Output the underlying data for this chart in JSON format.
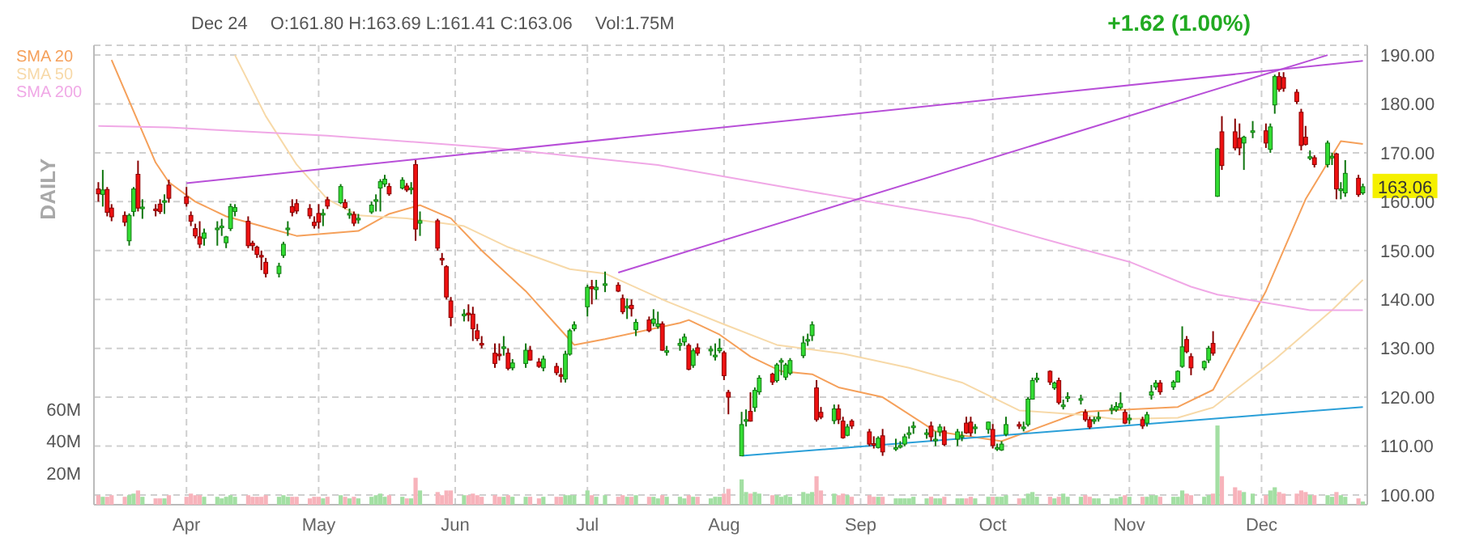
{
  "chart_data": {
    "type": "candlestick",
    "annotations": [
      "Dec 24",
      "O:161.80 H:163.69 L:161.41 C:163.06",
      "Vol:1.75M",
      "+1.62 (1.00%)",
      "DAILY",
      {
        "text": "163.06",
        "x": "--12-24",
        "y": 163.06
      }
    ],
    "x": [
      "--03-12",
      "--03-13",
      "--03-14",
      "--03-15",
      "--03-18",
      "--03-19",
      "--03-20",
      "--03-21",
      "--03-22",
      "--03-25",
      "--03-26",
      "--03-27",
      "--03-28",
      "--04-01",
      "--04-02",
      "--04-03",
      "--04-04",
      "--04-05",
      "--04-08",
      "--04-09",
      "--04-10",
      "--04-11",
      "--04-12",
      "--04-15",
      "--04-16",
      "--04-17",
      "--04-18",
      "--04-19",
      "--04-22",
      "--04-23",
      "--04-24",
      "--04-25",
      "--04-26",
      "--04-29",
      "--04-30",
      "--05-01",
      "--05-02",
      "--05-03",
      "--05-06",
      "--05-07",
      "--05-08",
      "--05-09",
      "--05-10",
      "--05-13",
      "--05-14",
      "--05-15",
      "--05-16",
      "--05-17",
      "--05-20",
      "--05-21",
      "--05-22",
      "--05-23",
      "--05-24",
      "--05-28",
      "--05-29",
      "--05-30",
      "--05-31",
      "--06-03",
      "--06-04",
      "--06-05",
      "--06-06",
      "--06-07",
      "--06-10",
      "--06-11",
      "--06-12",
      "--06-13",
      "--06-14",
      "--06-17",
      "--06-18",
      "--06-20",
      "--06-21",
      "--06-24",
      "--06-25",
      "--06-26",
      "--06-27",
      "--06-28",
      "--07-01",
      "--07-02",
      "--07-03",
      "--07-05",
      "--07-08",
      "--07-09",
      "--07-10",
      "--07-11",
      "--07-12",
      "--07-15",
      "--07-16",
      "--07-17",
      "--07-18",
      "--07-19",
      "--07-22",
      "--07-23",
      "--07-24",
      "--07-25",
      "--07-26",
      "--07-29",
      "--07-30",
      "--07-31",
      "--08-01",
      "--08-02",
      "--08-05",
      "--08-06",
      "--08-07",
      "--08-08",
      "--08-09",
      "--08-12",
      "--08-13",
      "--08-14",
      "--08-15",
      "--08-16",
      "--08-19",
      "--08-20",
      "--08-21",
      "--08-22",
      "--08-23",
      "--08-26",
      "--08-27",
      "--08-28",
      "--08-29",
      "--08-30",
      "--09-03",
      "--09-04",
      "--09-05",
      "--09-06",
      "--09-09",
      "--09-10",
      "--09-11",
      "--09-12",
      "--09-13",
      "--09-16",
      "--09-17",
      "--09-18",
      "--09-19",
      "--09-20",
      "--09-23",
      "--09-24",
      "--09-25",
      "--09-26",
      "--09-27",
      "--09-30",
      "--10-01",
      "--10-02",
      "--10-03",
      "--10-04",
      "--10-07",
      "--10-08",
      "--10-09",
      "--10-10",
      "--10-11",
      "--10-14",
      "--10-15",
      "--10-16",
      "--10-17",
      "--10-18",
      "--10-21",
      "--10-22",
      "--10-23",
      "--10-24",
      "--10-25",
      "--10-28",
      "--10-29",
      "--10-30",
      "--10-31",
      "--11-01",
      "--11-04",
      "--11-05",
      "--11-06",
      "--11-07",
      "--11-08",
      "--11-11",
      "--11-12",
      "--11-13",
      "--11-14",
      "--11-15",
      "--11-18",
      "--11-19",
      "--11-20",
      "--11-21",
      "--11-22",
      "--11-25",
      "--11-26",
      "--11-27",
      "--11-29",
      "--12-02",
      "--12-03",
      "--12-04",
      "--12-05",
      "--12-06",
      "--12-09",
      "--12-10",
      "--12-11",
      "--12-12",
      "--12-13",
      "--12-16",
      "--12-17",
      "--12-18",
      "--12-19",
      "--12-20",
      "--12-23",
      "--12-24"
    ],
    "ohlc": [
      [
        162.6,
        164,
        160,
        161.6
      ],
      [
        161.5,
        166.5,
        159,
        162.4
      ],
      [
        162.5,
        163,
        157,
        157.8
      ],
      [
        158.7,
        159.5,
        156,
        156.9
      ],
      [
        157.2,
        158,
        155,
        155.8
      ],
      [
        152,
        157.6,
        151,
        157.2
      ],
      [
        158,
        163,
        157,
        162.6
      ],
      [
        165.6,
        168.4,
        158,
        158.7
      ],
      [
        158.6,
        160.5,
        156.5,
        158.9
      ],
      [
        158.5,
        159.5,
        157,
        158.4
      ],
      [
        159.5,
        160.5,
        157.5,
        158
      ],
      [
        160,
        161.5,
        157.5,
        160.2
      ],
      [
        163.4,
        164.5,
        159.8,
        160.7
      ],
      [
        161,
        163,
        159,
        159.6
      ],
      [
        157.2,
        158,
        155,
        156
      ],
      [
        154.5,
        155.5,
        152.5,
        153
      ],
      [
        152.8,
        156,
        150.5,
        151.3
      ],
      [
        152.5,
        154.5,
        151,
        153.6
      ],
      [
        154.3,
        156,
        151,
        154.6
      ],
      [
        155,
        156.5,
        153,
        155
      ],
      [
        151.6,
        153,
        150.5,
        152.8
      ],
      [
        154.5,
        159.6,
        154,
        159
      ],
      [
        158,
        159.5,
        157,
        158.8
      ],
      [
        156,
        157,
        150.5,
        151
      ],
      [
        151.5,
        152,
        150,
        151
      ],
      [
        150.7,
        151,
        148.5,
        149.2
      ],
      [
        149,
        150,
        146,
        148.8
      ],
      [
        147.6,
        148.5,
        144.5,
        145.3
      ],
      [
        145.3,
        147.5,
        144.5,
        146.8
      ],
      [
        149,
        151.8,
        148.5,
        151.3
      ],
      [
        154.3,
        156,
        153,
        154.6
      ],
      [
        159,
        160.5,
        157,
        157.8
      ],
      [
        159.6,
        160.5,
        157.5,
        158.1
      ],
      [
        158.6,
        159.5,
        156.5,
        157.1
      ],
      [
        155.8,
        157,
        154.5,
        155.1
      ],
      [
        157.6,
        159.5,
        154.5,
        155.8
      ],
      [
        157.5,
        158.5,
        155,
        157.6
      ],
      [
        160.4,
        161,
        158.5,
        159.1
      ],
      [
        159.8,
        163.6,
        159.5,
        163.1
      ],
      [
        159.8,
        160.5,
        158.5,
        158.8
      ],
      [
        157.5,
        158.6,
        156.5,
        157.6
      ],
      [
        157.4,
        158,
        155,
        155.6
      ],
      [
        156.5,
        157.5,
        155.5,
        156.6
      ],
      [
        157.9,
        160,
        157.5,
        159.3
      ],
      [
        160.4,
        161.5,
        158,
        160.4
      ],
      [
        162.8,
        164.6,
        158,
        164.1
      ],
      [
        163.6,
        165.5,
        163,
        164.6
      ],
      [
        163.1,
        163.8,
        161.2,
        161.6
      ],
      [
        162.8,
        165,
        162.5,
        164.4
      ],
      [
        163.2,
        163.8,
        162,
        162.4
      ],
      [
        162.6,
        164,
        161.5,
        162.8
      ],
      [
        167.6,
        168.5,
        152,
        154.4
      ],
      [
        155.6,
        158,
        153,
        156.1
      ],
      [
        156.1,
        156.5,
        150,
        150.5
      ],
      [
        148.4,
        149.5,
        147,
        148.2
      ],
      [
        146.7,
        147,
        140,
        140.5
      ],
      [
        139.7,
        140.5,
        134.5,
        136.3
      ],
      [
        136.8,
        138,
        135.5,
        137
      ],
      [
        137.2,
        139,
        135.5,
        137
      ],
      [
        137,
        138.5,
        131.5,
        134
      ],
      [
        133.6,
        135,
        131.5,
        132
      ],
      [
        131,
        132.5,
        130,
        130.8
      ],
      [
        129,
        131,
        126,
        126.9
      ],
      [
        128.8,
        131,
        127.5,
        128.5
      ],
      [
        130.2,
        132.5,
        128.5,
        130.3
      ],
      [
        129,
        130,
        125.5,
        125.9
      ],
      [
        126,
        127.8,
        125.5,
        127
      ],
      [
        126.9,
        131,
        126,
        129.6
      ],
      [
        129.6,
        130.5,
        127.5,
        127.6
      ],
      [
        127.2,
        128,
        126,
        126.3
      ],
      [
        126,
        128.5,
        125.3,
        127.8
      ],
      [
        126.3,
        127,
        124.5,
        125
      ],
      [
        124.6,
        126,
        123,
        124.4
      ],
      [
        123.7,
        129.5,
        123,
        128.8
      ],
      [
        128.8,
        134,
        128.5,
        133.6
      ],
      [
        134,
        135.5,
        133.5,
        134.8
      ],
      [
        138.5,
        143,
        136.5,
        142.5
      ],
      [
        142.6,
        144,
        139,
        142.2
      ],
      [
        142,
        144,
        140,
        142.5
      ],
      [
        143.2,
        145.7,
        141.5,
        143.2
      ],
      [
        142.9,
        143.5,
        141.5,
        141.7
      ],
      [
        140.2,
        141,
        137,
        137.5
      ],
      [
        138.5,
        140.2,
        136,
        138.6
      ],
      [
        138.8,
        140,
        136.5,
        138.1
      ],
      [
        133.8,
        136,
        132.5,
        135.3
      ],
      [
        135.8,
        136.5,
        133.3,
        133.6
      ],
      [
        135.1,
        138,
        134.5,
        136
      ],
      [
        134.5,
        137.5,
        134,
        135
      ],
      [
        135,
        135.5,
        129.5,
        129.6
      ],
      [
        129.5,
        130.5,
        128.5,
        129.5
      ],
      [
        130.6,
        132,
        129.5,
        131
      ],
      [
        131.3,
        133,
        130.5,
        132.3
      ],
      [
        130.6,
        131,
        125.5,
        125.7
      ],
      [
        126.5,
        130,
        126,
        129.5
      ],
      [
        130.1,
        131,
        128.5,
        129
      ],
      [
        129.8,
        130.5,
        128.5,
        129.8
      ],
      [
        128.6,
        131,
        127.5,
        128.6
      ],
      [
        129.5,
        132,
        129,
        130
      ],
      [
        129.1,
        129.5,
        123.5,
        124.4
      ],
      [
        121,
        121.5,
        116.5,
        120
      ],
      [
        108,
        117,
        108,
        114.4
      ],
      [
        115.4,
        117.5,
        114,
        115.4
      ],
      [
        117.1,
        121,
        115,
        115.1
      ],
      [
        117.9,
        122,
        117,
        121.4
      ],
      [
        121.1,
        124.5,
        120.5,
        123.9
      ],
      [
        124.7,
        125,
        122.5,
        123.1
      ],
      [
        123.4,
        127,
        123,
        126.6
      ],
      [
        127.5,
        128,
        124.5,
        127.5
      ],
      [
        124.1,
        127,
        123.5,
        126.6
      ],
      [
        124.9,
        128,
        124.5,
        127.5
      ],
      [
        128.5,
        132.5,
        128,
        131.1
      ],
      [
        131.8,
        133,
        130.5,
        131.8
      ],
      [
        132.6,
        135.5,
        131.5,
        134.8
      ],
      [
        121.9,
        123.5,
        115,
        115.4
      ],
      [
        116.9,
        118,
        115.5,
        115.9
      ],
      [
        115.2,
        118.5,
        114.5,
        117.6
      ],
      [
        117.6,
        118.5,
        114.5,
        115.4
      ],
      [
        115.1,
        116,
        111.5,
        111.7
      ],
      [
        112.2,
        114.5,
        112,
        113.9
      ],
      [
        115.1,
        115.5,
        113.5,
        114.1
      ],
      [
        112.9,
        113.5,
        110,
        110.4
      ],
      [
        110.5,
        112,
        109.5,
        110.4
      ],
      [
        109.7,
        112,
        109.5,
        111.6
      ],
      [
        112.1,
        113.5,
        108,
        108.8
      ],
      [
        109.7,
        111.5,
        109,
        109.7
      ],
      [
        110.1,
        111,
        109.5,
        110.1
      ],
      [
        110.4,
        112.5,
        110,
        111.9
      ],
      [
        112.7,
        114,
        111.5,
        112.7
      ],
      [
        114.1,
        115,
        112.5,
        114.1
      ],
      [
        112.7,
        113.5,
        111.5,
        112.7
      ],
      [
        114.1,
        115,
        111,
        111.9
      ],
      [
        111.4,
        113,
        110,
        111.4
      ],
      [
        112.9,
        114.5,
        112,
        113.9
      ],
      [
        113.1,
        114,
        110,
        110.3
      ],
      [
        111.4,
        113.5,
        110,
        112.9
      ],
      [
        112.1,
        113,
        111,
        112.1
      ],
      [
        114.7,
        116,
        112.5,
        112.7
      ],
      [
        114.9,
        116,
        112,
        112.7
      ],
      [
        113.9,
        114.5,
        112.5,
        113.9
      ],
      [
        113.4,
        115,
        112.5,
        114.9
      ],
      [
        113.4,
        114.5,
        109.5,
        110.1
      ],
      [
        109.7,
        110.5,
        109,
        109.7
      ],
      [
        109.2,
        111,
        109,
        110.4
      ],
      [
        112.4,
        116,
        112,
        114.4
      ],
      [
        114.4,
        115,
        113.5,
        114.1
      ],
      [
        113.9,
        115,
        113,
        113.9
      ],
      [
        114.4,
        120,
        114,
        119.6
      ],
      [
        119.6,
        124,
        119.5,
        123.4
      ],
      [
        123.9,
        125,
        123,
        123.9
      ],
      [
        125.3,
        125.5,
        122.5,
        123.1
      ],
      [
        121.9,
        123.2,
        121.5,
        122.9
      ],
      [
        123.4,
        124,
        118.5,
        118.9
      ],
      [
        118.4,
        119.5,
        117.5,
        118.4
      ],
      [
        120.1,
        121,
        119,
        120.1
      ],
      [
        119.7,
        120.5,
        118.5,
        119.7
      ],
      [
        116.9,
        117.5,
        115,
        115.4
      ],
      [
        115.4,
        116,
        113.5,
        113.9
      ],
      [
        115.4,
        116,
        114.5,
        115.4
      ],
      [
        115.9,
        117,
        115,
        115.9
      ],
      [
        117.7,
        118.5,
        116.5,
        117.7
      ],
      [
        117.4,
        119,
        117,
        118.1
      ],
      [
        117.9,
        121,
        117.5,
        118.7
      ],
      [
        116.9,
        117.5,
        114.5,
        114.7
      ],
      [
        115.7,
        116.5,
        114.5,
        115.7
      ],
      [
        115.4,
        116,
        113.5,
        114.1
      ],
      [
        114.7,
        117,
        114,
        116.4
      ],
      [
        120.4,
        122.5,
        119.5,
        121.1
      ],
      [
        122.1,
        123.5,
        121.5,
        122.9
      ],
      [
        122.9,
        123.5,
        120.5,
        121.1
      ],
      [
        122.1,
        123.5,
        121.5,
        123.1
      ],
      [
        123.1,
        125.5,
        123,
        125.3
      ],
      [
        126.3,
        134.5,
        126,
        130.3
      ],
      [
        131.8,
        132.5,
        129,
        129.3
      ],
      [
        128.3,
        129,
        124.5,
        126
      ],
      [
        126,
        127.5,
        125.5,
        127.3
      ],
      [
        127.6,
        130.5,
        127,
        130
      ],
      [
        131,
        133.5,
        128.5,
        129
      ],
      [
        161.1,
        171,
        161,
        170.8
      ],
      [
        174.3,
        177.5,
        166.5,
        167.4
      ],
      [
        174.3,
        177,
        170.5,
        171
      ],
      [
        173,
        176,
        169.5,
        171
      ],
      [
        172,
        173.5,
        166.5,
        173.2
      ],
      [
        174.5,
        176.5,
        173,
        174.5
      ],
      [
        174.5,
        176,
        171,
        172
      ],
      [
        170.7,
        176,
        170,
        175.3
      ],
      [
        179.8,
        186,
        178,
        185.6
      ],
      [
        185.6,
        186.5,
        182.5,
        183
      ],
      [
        185.4,
        186.5,
        182.5,
        183.2
      ],
      [
        182.4,
        183,
        180,
        180.5
      ],
      [
        178.3,
        179,
        170.5,
        171.5
      ],
      [
        173.2,
        175.5,
        171.5,
        171.7
      ],
      [
        169.2,
        170.5,
        168.5,
        169.2
      ],
      [
        169,
        169.5,
        167,
        167.6
      ],
      [
        167.6,
        172.5,
        167,
        172
      ],
      [
        169.3,
        170,
        167.5,
        169.3
      ],
      [
        169.8,
        170,
        160.5,
        162.6
      ],
      [
        162.6,
        164,
        160.5,
        162.6
      ],
      [
        161.8,
        168.5,
        161,
        165.8
      ],
      [
        164.8,
        165.5,
        161,
        161.44
      ],
      [
        161.8,
        163.69,
        161.41,
        163.06
      ]
    ],
    "series": [
      {
        "type": "line",
        "name": "SMA 20",
        "color": "#f5a05a",
        "x": [
          "--03-15",
          "--03-25",
          "--03-28",
          "--04-03",
          "--04-10",
          "--04-18",
          "--04-26",
          "--05-10",
          "--05-17",
          "--05-24",
          "--05-31",
          "--06-07",
          "--06-17",
          "--06-25",
          "--06-28",
          "--07-05",
          "--07-22",
          "--07-24",
          "--07-31",
          "--08-07",
          "--08-14",
          "--08-21",
          "--08-27",
          "--09-06",
          "--09-18",
          "--10-03",
          "--10-21",
          "--11-12",
          "--11-20",
          "--12-02",
          "--12-11",
          "--12-19",
          "--12-24"
        ],
        "values": [
          189,
          168,
          164,
          160,
          157,
          155,
          153,
          154,
          157.5,
          159.3,
          156.6,
          150,
          141.7,
          133.7,
          130.7,
          131.9,
          135.2,
          135.8,
          132.8,
          128.3,
          125.3,
          124.7,
          122,
          120,
          113,
          111,
          117,
          118,
          121.5,
          141.7,
          160.5,
          172.4,
          171.8
        ]
      },
      {
        "type": "line",
        "name": "SMA 50",
        "color": "#f7d9a8",
        "x": [
          "--04-12",
          "--04-19",
          "--04-26",
          "--05-03",
          "--05-10",
          "--05-21",
          "--06-03",
          "--06-13",
          "--06-27",
          "--07-05",
          "--07-19",
          "--08-01",
          "--08-13",
          "--08-28",
          "--09-12",
          "--09-24",
          "--10-07",
          "--10-21",
          "--10-29",
          "--11-12",
          "--11-20",
          "--12-04",
          "--12-17",
          "--12-24"
        ],
        "values": [
          190,
          177.5,
          167.6,
          160.5,
          157.2,
          156.6,
          155,
          150.7,
          146.2,
          145.3,
          139.6,
          134.9,
          130.7,
          128.9,
          126,
          123,
          117.3,
          116.4,
          115.5,
          115.8,
          117.9,
          127.7,
          137.8,
          144
        ]
      },
      {
        "type": "line",
        "name": "SMA 200",
        "color": "#f0a8e6",
        "x": [
          "--03-12",
          "--03-28",
          "--05-03",
          "--06-10",
          "--07-17",
          "--08-21",
          "--09-26",
          "--10-17",
          "--11-01",
          "--11-15",
          "--11-21",
          "--12-12",
          "--12-24"
        ],
        "values": [
          175.5,
          175.2,
          173.5,
          171,
          167.5,
          162,
          156.5,
          151.3,
          147.7,
          142.6,
          141,
          137.8,
          137.8
        ]
      },
      {
        "type": "line",
        "color": "#b84fd8",
        "x": [
          "--04-01",
          "--12-24"
        ],
        "values": [
          163.8,
          188.8
        ]
      },
      {
        "type": "line",
        "color": "#b84fd8",
        "x": [
          "--07-08",
          "--12-16"
        ],
        "values": [
          145.5,
          190
        ]
      },
      {
        "type": "line",
        "color": "#2a9fd8",
        "x": [
          "--08-05",
          "--12-24"
        ],
        "values": [
          108,
          118
        ]
      },
      {
        "type": "bar",
        "axis": "y2",
        "values": [
          6,
          5,
          5,
          6,
          5,
          6,
          7,
          9,
          5,
          4,
          4,
          4,
          6,
          5,
          7,
          6,
          6,
          5,
          5,
          4,
          5,
          6,
          5,
          6,
          5,
          5,
          5,
          6,
          5,
          6,
          5,
          5,
          5,
          4,
          5,
          5,
          4,
          5,
          6,
          5,
          4,
          5,
          4,
          5,
          6,
          7,
          5,
          6,
          5,
          4,
          4,
          17,
          9,
          8,
          6,
          9,
          9,
          6,
          6,
          7,
          6,
          5,
          6,
          5,
          5,
          6,
          5,
          5,
          5,
          4,
          5,
          5,
          5,
          6,
          6,
          6,
          9,
          6,
          5,
          6,
          5,
          6,
          5,
          5,
          6,
          5,
          5,
          4,
          6,
          5,
          5,
          4,
          6,
          5,
          5,
          4,
          5,
          5,
          7,
          10,
          16,
          8,
          7,
          8,
          7,
          6,
          6,
          5,
          6,
          5,
          8,
          7,
          8,
          18,
          9,
          7,
          6,
          7,
          6,
          5,
          6,
          5,
          5,
          5,
          4,
          4,
          4,
          4,
          5,
          4,
          5,
          4,
          4,
          5,
          4,
          4,
          4,
          5,
          4,
          5,
          5,
          5,
          5,
          6,
          4,
          4,
          7,
          8,
          5,
          5,
          4,
          5,
          7,
          5,
          5,
          6,
          5,
          4,
          4,
          4,
          4,
          5,
          6,
          5,
          5,
          5,
          6,
          6,
          5,
          5,
          5,
          9,
          7,
          6,
          5,
          6,
          7,
          50,
          18,
          11,
          9,
          8,
          7,
          6,
          9,
          11,
          8,
          7,
          7,
          9,
          8,
          6,
          6,
          6,
          5,
          8,
          6,
          5,
          4,
          2
        ],
        "colors": [
          "#f7b3bb",
          "#a3dfa3",
          "#f7b3bb",
          "#f7b3bb",
          "#f7b3bb",
          "#a3dfa3",
          "#a3dfa3",
          "#f7b3bb",
          "#a3dfa3",
          "#f7b3bb",
          "#f7b3bb",
          "#a3dfa3",
          "#f7b3bb",
          "#f7b3bb",
          "#f7b3bb",
          "#f7b3bb",
          "#f7b3bb",
          "#a3dfa3",
          "#a3dfa3",
          "#a3dfa3",
          "#a3dfa3",
          "#a3dfa3",
          "#a3dfa3",
          "#f7b3bb",
          "#f7b3bb",
          "#f7b3bb",
          "#f7b3bb",
          "#f7b3bb",
          "#a3dfa3",
          "#a3dfa3",
          "#a3dfa3",
          "#f7b3bb",
          "#f7b3bb",
          "#f7b3bb",
          "#f7b3bb",
          "#f7b3bb",
          "#a3dfa3",
          "#f7b3bb",
          "#a3dfa3",
          "#f7b3bb",
          "#a3dfa3",
          "#f7b3bb",
          "#a3dfa3",
          "#a3dfa3",
          "#a3dfa3",
          "#a3dfa3",
          "#a3dfa3",
          "#f7b3bb",
          "#a3dfa3",
          "#f7b3bb",
          "#a3dfa3",
          "#f7b3bb",
          "#a3dfa3",
          "#f7b3bb",
          "#f7b3bb",
          "#f7b3bb",
          "#f7b3bb",
          "#a3dfa3",
          "#f7b3bb",
          "#f7b3bb",
          "#f7b3bb",
          "#f7b3bb",
          "#f7b3bb",
          "#f7b3bb",
          "#a3dfa3",
          "#f7b3bb",
          "#a3dfa3",
          "#a3dfa3",
          "#f7b3bb",
          "#f7b3bb",
          "#a3dfa3",
          "#f7b3bb",
          "#f7b3bb",
          "#a3dfa3",
          "#a3dfa3",
          "#a3dfa3",
          "#a3dfa3",
          "#f7b3bb",
          "#a3dfa3",
          "#a3dfa3",
          "#f7b3bb",
          "#f7b3bb",
          "#a3dfa3",
          "#f7b3bb",
          "#a3dfa3",
          "#f7b3bb",
          "#a3dfa3",
          "#a3dfa3",
          "#f7b3bb",
          "#a3dfa3",
          "#a3dfa3",
          "#a3dfa3",
          "#f7b3bb",
          "#a3dfa3",
          "#f7b3bb",
          "#a3dfa3",
          "#a3dfa3",
          "#a3dfa3",
          "#f7b3bb",
          "#f7b3bb",
          "#a3dfa3",
          "#a3dfa3",
          "#f7b3bb",
          "#a3dfa3",
          "#a3dfa3",
          "#f7b3bb",
          "#a3dfa3",
          "#a3dfa3",
          "#a3dfa3",
          "#a3dfa3",
          "#a3dfa3",
          "#a3dfa3",
          "#a3dfa3",
          "#f7b3bb",
          "#f7b3bb",
          "#a3dfa3",
          "#f7b3bb",
          "#f7b3bb",
          "#a3dfa3",
          "#f7b3bb",
          "#f7b3bb",
          "#f7b3bb",
          "#a3dfa3",
          "#f7b3bb",
          "#a3dfa3",
          "#a3dfa3",
          "#a3dfa3",
          "#a3dfa3",
          "#a3dfa3",
          "#a3dfa3",
          "#f7b3bb",
          "#a3dfa3",
          "#a3dfa3",
          "#f7b3bb",
          "#a3dfa3",
          "#a3dfa3",
          "#f7b3bb",
          "#f7b3bb",
          "#a3dfa3",
          "#a3dfa3",
          "#f7b3bb",
          "#a3dfa3",
          "#a3dfa3",
          "#a3dfa3",
          "#f7b3bb",
          "#a3dfa3",
          "#a3dfa3",
          "#a3dfa3",
          "#a3dfa3",
          "#f7b3bb",
          "#a3dfa3",
          "#f7b3bb",
          "#a3dfa3",
          "#a3dfa3",
          "#a3dfa3",
          "#f7b3bb",
          "#f7b3bb",
          "#a3dfa3",
          "#a3dfa3",
          "#a3dfa3",
          "#a3dfa3",
          "#a3dfa3",
          "#f7b3bb",
          "#a3dfa3",
          "#f7b3bb",
          "#a3dfa3",
          "#a3dfa3",
          "#a3dfa3",
          "#f7b3bb",
          "#a3dfa3",
          "#a3dfa3",
          "#a3dfa3",
          "#f7b3bb",
          "#f7b3bb",
          "#a3dfa3",
          "#a3dfa3",
          "#f7b3bb",
          "#a3dfa3",
          "#f7b3bb",
          "#f7b3bb",
          "#f7b3bb",
          "#a3dfa3",
          "#a3dfa3",
          "#f7b3bb",
          "#a3dfa3",
          "#a3dfa3",
          "#f7b3bb",
          "#f7b3bb",
          "#f7b3bb",
          "#f7b3bb",
          "#f7b3bb",
          "#a3dfa3",
          "#f7b3bb",
          "#a3dfa3",
          "#a3dfa3",
          "#f7b3bb",
          "#a3dfa3",
          "#a3dfa3",
          "#f7b3bb",
          "#a3dfa3"
        ]
      }
    ],
    "xlim": [
      "--03-11",
      "--12-25"
    ],
    "xticks": [
      {
        "value": "--04-01",
        "label": "Apr"
      },
      {
        "value": "--05-01",
        "label": "May"
      },
      {
        "value": "--06-01",
        "label": "Jun"
      },
      {
        "value": "--07-01",
        "label": "Jul"
      },
      {
        "value": "--08-01",
        "label": "Aug"
      },
      {
        "value": "--09-01",
        "label": "Sep"
      },
      {
        "value": "--10-01",
        "label": "Oct"
      },
      {
        "value": "--11-01",
        "label": "Nov"
      },
      {
        "value": "--12-01",
        "label": "Dec"
      }
    ],
    "ylim": [
      98,
      192
    ],
    "yticks": [
      {
        "value": 100,
        "label": "100.00"
      },
      {
        "value": 110,
        "label": "110.00"
      },
      {
        "value": 120,
        "label": "120.00"
      },
      {
        "value": 130,
        "label": "130.00"
      },
      {
        "value": 140,
        "label": "140.00"
      },
      {
        "value": 150,
        "label": "150.00"
      },
      {
        "value": 160,
        "label": "160.00"
      },
      {
        "value": 170,
        "label": "170.00"
      },
      {
        "value": 180,
        "label": "180.00"
      },
      {
        "value": 190,
        "label": "190.00"
      }
    ],
    "y2lim": [
      0,
      290
    ],
    "y2ticks": [
      {
        "value": 20,
        "label": "20M"
      },
      {
        "value": 40,
        "label": "40M"
      },
      {
        "value": 60,
        "label": "60M"
      }
    ],
    "grid": true,
    "legend": "top left",
    "marker": "none"
  }
}
